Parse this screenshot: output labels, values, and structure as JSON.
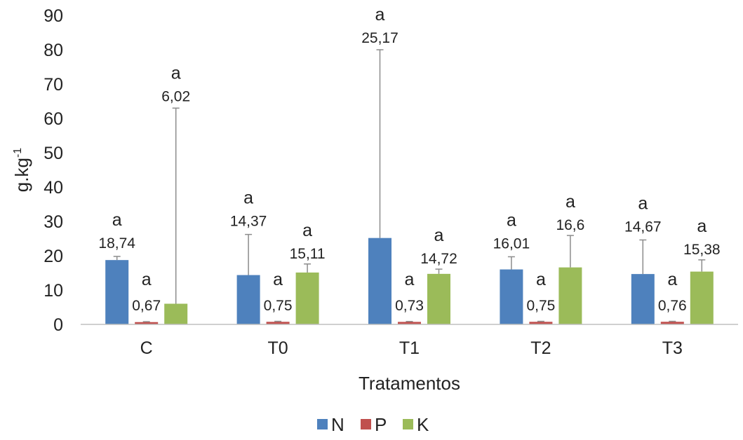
{
  "chart_data": {
    "type": "bar",
    "title": "",
    "xlabel": "Tratamentos",
    "ylabel": "g.kg",
    "ylabel_superscript": "-1",
    "ylim": [
      0,
      90
    ],
    "yticks": [
      0,
      10,
      20,
      30,
      40,
      50,
      60,
      70,
      80,
      90
    ],
    "categories": [
      "C",
      "T0",
      "T1",
      "T2",
      "T3"
    ],
    "series": [
      {
        "name": "N",
        "color": "#4e81bd",
        "values": [
          18.74,
          14.37,
          25.17,
          16.01,
          14.67
        ],
        "labels": [
          "18,74",
          "14,37",
          "25,17",
          "16,01",
          "14,67"
        ],
        "error_upper": [
          19.8,
          26.2,
          80.0,
          19.7,
          24.6
        ],
        "significance": [
          "a",
          "a",
          "a",
          "a",
          "a"
        ]
      },
      {
        "name": "P",
        "color": "#c0504e",
        "values": [
          0.67,
          0.75,
          0.73,
          0.75,
          0.76
        ],
        "labels": [
          "0,67",
          "0,75",
          "0,73",
          "0,75",
          "0,76"
        ],
        "error_upper": [
          0.8,
          0.9,
          0.85,
          0.9,
          0.9
        ],
        "significance": [
          "a",
          "a",
          "a",
          "a",
          "a"
        ]
      },
      {
        "name": "K",
        "color": "#9bbb59",
        "values": [
          6.02,
          15.11,
          14.72,
          16.6,
          15.38
        ],
        "labels": [
          "6,02",
          "15,11",
          "14,72",
          "16,6",
          "15,38"
        ],
        "error_upper": [
          63.0,
          17.6,
          16.1,
          25.9,
          18.8
        ],
        "significance": [
          "a",
          "a",
          "a",
          "a",
          "a"
        ]
      }
    ],
    "grid": false,
    "legend_position": "bottom"
  }
}
